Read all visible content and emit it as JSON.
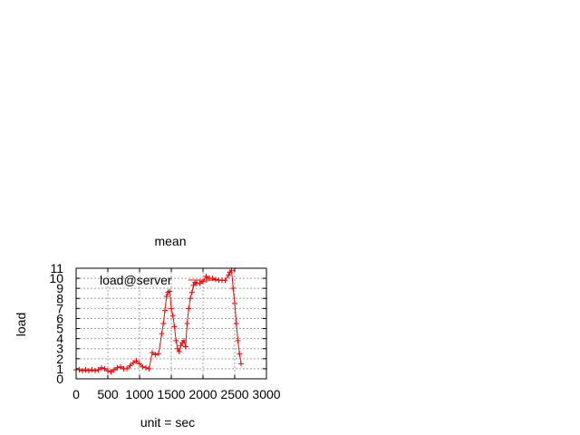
{
  "chart_data": {
    "type": "line",
    "title": "mean",
    "xlabel": "unit = sec",
    "ylabel": "load",
    "xlim": [
      0,
      3000
    ],
    "ylim": [
      0,
      11
    ],
    "xticks": [
      "0",
      "500",
      "1000",
      "1500",
      "2000",
      "2500",
      "3000"
    ],
    "yticks": [
      "0",
      "1",
      "2",
      "3",
      "4",
      "5",
      "6",
      "7",
      "8",
      "9",
      "10",
      "11"
    ],
    "grid": true,
    "legend_position": "top-left",
    "series": [
      {
        "name": "load@server",
        "color": "#ff0000",
        "marker": "plus",
        "x": [
          0,
          50,
          100,
          150,
          200,
          250,
          300,
          350,
          400,
          450,
          500,
          550,
          600,
          650,
          700,
          750,
          800,
          850,
          900,
          950,
          1000,
          1050,
          1100,
          1150,
          1200,
          1250,
          1300,
          1350,
          1375,
          1400,
          1425,
          1450,
          1475,
          1500,
          1525,
          1550,
          1575,
          1600,
          1625,
          1650,
          1675,
          1700,
          1725,
          1750,
          1775,
          1800,
          1825,
          1850,
          1875,
          1900,
          1950,
          2000,
          2050,
          2100,
          2150,
          2200,
          2250,
          2300,
          2350,
          2400,
          2425,
          2450,
          2475,
          2500,
          2525,
          2550,
          2575,
          2600
        ],
        "y": [
          0.9,
          0.9,
          0.8,
          0.9,
          0.8,
          0.9,
          0.8,
          0.9,
          1.1,
          1.0,
          0.8,
          0.7,
          0.9,
          1.1,
          1.2,
          1.0,
          1.0,
          1.3,
          1.6,
          1.8,
          1.5,
          1.2,
          1.1,
          1.0,
          2.6,
          2.4,
          2.5,
          4.5,
          5.5,
          6.8,
          8.2,
          8.6,
          8.7,
          7.0,
          6.3,
          5.2,
          3.8,
          3.0,
          2.7,
          3.3,
          3.6,
          3.8,
          3.2,
          5.5,
          7.0,
          8.0,
          8.6,
          9.3,
          9.6,
          9.5,
          9.5,
          9.7,
          10.2,
          10.0,
          10.0,
          9.9,
          9.8,
          9.8,
          9.8,
          10.3,
          10.6,
          10.8,
          9.0,
          7.5,
          5.5,
          3.8,
          2.5,
          1.5
        ]
      }
    ]
  }
}
